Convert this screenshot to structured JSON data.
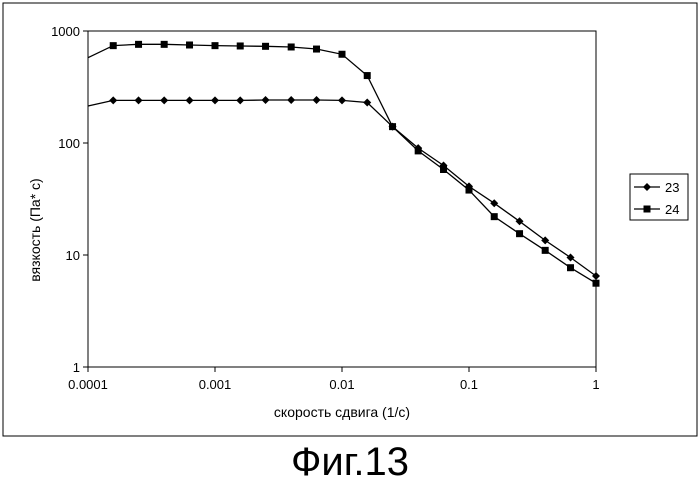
{
  "chart_data": {
    "type": "line",
    "x_scale": "log",
    "y_scale": "log",
    "xlim": [
      0.0001,
      1
    ],
    "ylim": [
      1,
      1000
    ],
    "xlabel": "скорость сдвига (1/с)",
    "ylabel": "вязкость (Па* с)",
    "x_ticks": [
      "0.0001",
      "0.001",
      "0.01",
      "0.1",
      "1"
    ],
    "y_ticks": [
      "1",
      "10",
      "100",
      "1000"
    ],
    "grid": false,
    "legend_position": "right",
    "series": [
      {
        "name": "23",
        "marker": "diamond",
        "x": [
          0.000158,
          0.00025,
          0.000398,
          0.00063,
          0.001,
          0.00158,
          0.0025,
          0.00398,
          0.0063,
          0.01,
          0.0158,
          0.025,
          0.0398,
          0.063,
          0.1,
          0.158,
          0.25,
          0.398,
          0.63,
          1
        ],
        "y": [
          240,
          240,
          240,
          240,
          240,
          240,
          242,
          242,
          242,
          240,
          230,
          140,
          90,
          63,
          41,
          29,
          20,
          13.5,
          9.5,
          6.5
        ]
      },
      {
        "name": "24",
        "marker": "square",
        "x": [
          0.000158,
          0.00025,
          0.000398,
          0.00063,
          0.001,
          0.00158,
          0.0025,
          0.00398,
          0.0063,
          0.01,
          0.0158,
          0.025,
          0.0398,
          0.063,
          0.1,
          0.158,
          0.25,
          0.398,
          0.63,
          1
        ],
        "y": [
          740,
          760,
          760,
          750,
          740,
          735,
          730,
          720,
          690,
          620,
          400,
          140,
          85,
          58,
          38,
          22,
          15.5,
          11,
          7.7,
          5.6
        ]
      }
    ]
  },
  "caption": "Фиг.13"
}
